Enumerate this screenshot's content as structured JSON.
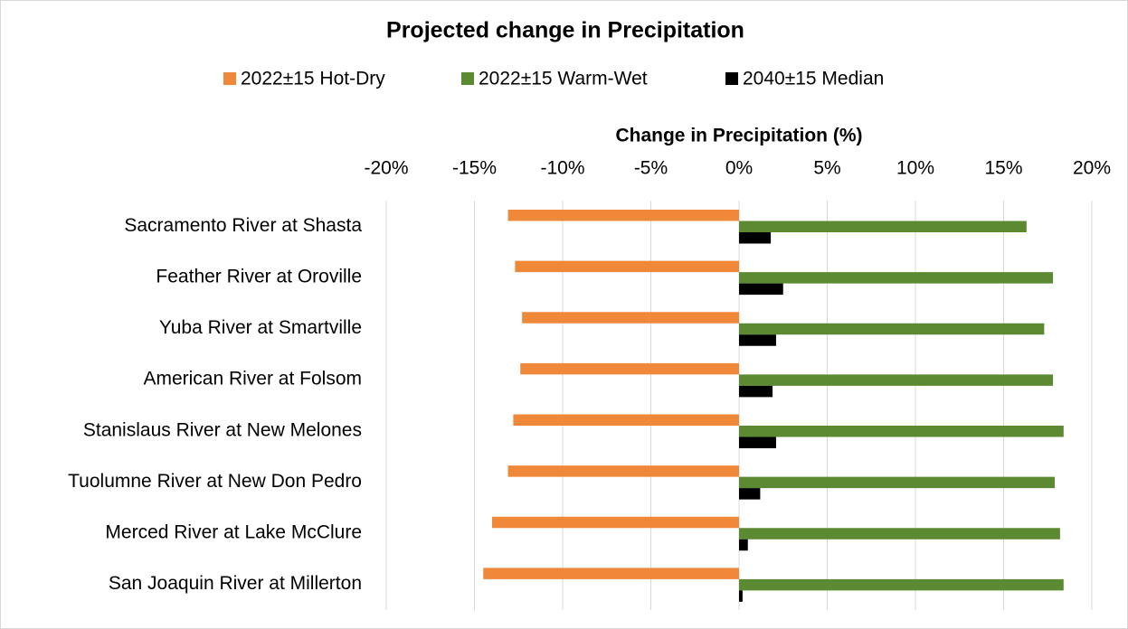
{
  "chart_data": {
    "type": "hbar",
    "title": "Projected change in Precipitation",
    "x_label": "Change in Precipitation (%)",
    "categories": [
      "Sacramento River at Shasta",
      "Feather River at Oroville",
      "Yuba River at Smartville",
      "American River at Folsom",
      "Stanislaus River at New Melones",
      "Tuolumne River at New Don Pedro",
      "Merced River at Lake McClure",
      "San Joaquin River at Millerton"
    ],
    "series": [
      {
        "name": "2022±15 Hot-Dry",
        "color": "#f0883a",
        "values": [
          -13.1,
          -12.7,
          -12.3,
          -12.4,
          -12.8,
          -13.1,
          -14.0,
          -14.5
        ]
      },
      {
        "name": "2022±15 Warm-Wet",
        "color": "#5b8a32",
        "values": [
          16.3,
          17.8,
          17.3,
          17.8,
          18.4,
          17.9,
          18.2,
          18.4
        ]
      },
      {
        "name": "2040±15 Median",
        "color": "#000000",
        "values": [
          1.8,
          2.5,
          2.1,
          1.9,
          2.1,
          1.2,
          0.5,
          0.2
        ]
      }
    ],
    "xlim": [
      -20,
      20
    ],
    "xticks": [
      {
        "value": -20,
        "label": "-20%"
      },
      {
        "value": -15,
        "label": "-15%"
      },
      {
        "value": -10,
        "label": "-10%"
      },
      {
        "value": -5,
        "label": "-5%"
      },
      {
        "value": 0,
        "label": "0%"
      },
      {
        "value": 5,
        "label": "5%"
      },
      {
        "value": 10,
        "label": "10%"
      },
      {
        "value": 15,
        "label": "15%"
      },
      {
        "value": 20,
        "label": "20%"
      }
    ],
    "grid": true,
    "legend": "top"
  }
}
